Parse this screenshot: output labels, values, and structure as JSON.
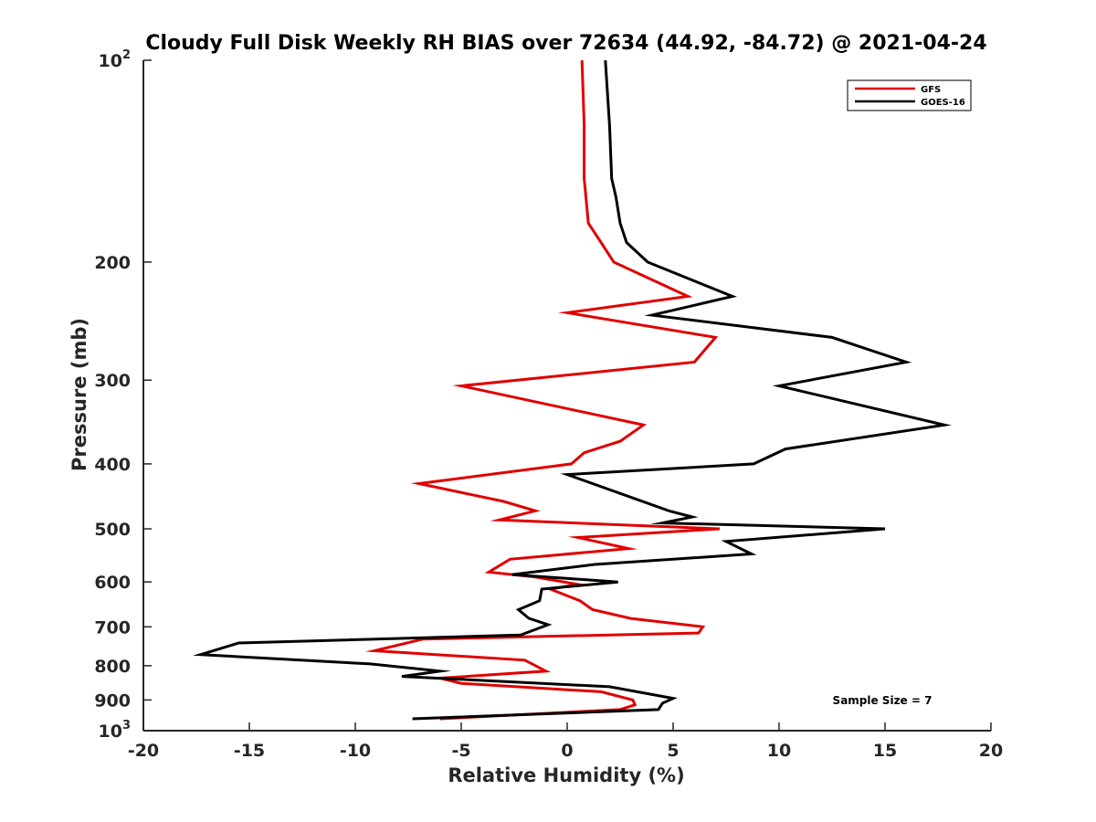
{
  "chart_data": {
    "type": "line",
    "title": "Cloudy Full Disk Weekly RH BIAS over 72634 (44.92, -84.72) @ 2021-04-24",
    "xlabel": "Relative Humidity (%)",
    "ylabel": "Pressure (mb)",
    "xlim": [
      -20,
      20
    ],
    "ylim": [
      100,
      1000
    ],
    "y_scale": "log",
    "y_reversed": true,
    "x_ticks": [
      -20,
      -15,
      -10,
      -5,
      0,
      5,
      10,
      15,
      20
    ],
    "y_ticks": [
      {
        "value": 100,
        "label": "10",
        "sup": "2"
      },
      {
        "value": 200,
        "label": "200",
        "sup": ""
      },
      {
        "value": 300,
        "label": "300",
        "sup": ""
      },
      {
        "value": 400,
        "label": "400",
        "sup": ""
      },
      {
        "value": 500,
        "label": "500",
        "sup": ""
      },
      {
        "value": 600,
        "label": "600",
        "sup": ""
      },
      {
        "value": 700,
        "label": "700",
        "sup": ""
      },
      {
        "value": 800,
        "label": "800",
        "sup": ""
      },
      {
        "value": 900,
        "label": "900",
        "sup": ""
      },
      {
        "value": 1000,
        "label": "10",
        "sup": "3"
      }
    ],
    "grid": false,
    "legend_position": "top-right",
    "annotation": "Sample Size = 7",
    "series": [
      {
        "name": "GFS",
        "color": "#e00000",
        "points": [
          [
            0.7,
            100
          ],
          [
            0.8,
            125
          ],
          [
            0.8,
            150
          ],
          [
            1.0,
            175
          ],
          [
            1.6,
            187
          ],
          [
            2.2,
            200
          ],
          [
            5.7,
            225
          ],
          [
            0.0,
            238
          ],
          [
            7.0,
            259
          ],
          [
            6.0,
            282
          ],
          [
            -5.0,
            306
          ],
          [
            3.6,
            350
          ],
          [
            2.5,
            370
          ],
          [
            0.8,
            385
          ],
          [
            0.2,
            400
          ],
          [
            -7.0,
            428
          ],
          [
            -3.0,
            455
          ],
          [
            -1.5,
            470
          ],
          [
            -3.2,
            485
          ],
          [
            7.2,
            500
          ],
          [
            0.5,
            515
          ],
          [
            2.9,
            535
          ],
          [
            -2.7,
            555
          ],
          [
            -3.7,
            580
          ],
          [
            -1.5,
            590
          ],
          [
            0.5,
            605
          ],
          [
            -0.8,
            615
          ],
          [
            0.6,
            640
          ],
          [
            1.2,
            660
          ],
          [
            3.0,
            680
          ],
          [
            6.4,
            700
          ],
          [
            6.2,
            715
          ],
          [
            -6.8,
            730
          ],
          [
            -9.1,
            760
          ],
          [
            -2.0,
            785
          ],
          [
            -1.0,
            815
          ],
          [
            -6.0,
            835
          ],
          [
            -5.0,
            850
          ],
          [
            1.6,
            875
          ],
          [
            3.1,
            900
          ],
          [
            3.2,
            915
          ],
          [
            2.5,
            930
          ],
          [
            -6.0,
            960
          ]
        ]
      },
      {
        "name": "GOES-16",
        "color": "#000000",
        "points": [
          [
            1.8,
            100
          ],
          [
            2.0,
            125
          ],
          [
            2.1,
            150
          ],
          [
            2.3,
            160
          ],
          [
            2.5,
            175
          ],
          [
            2.8,
            187
          ],
          [
            3.8,
            200
          ],
          [
            7.8,
            225
          ],
          [
            4.0,
            240
          ],
          [
            12.5,
            259
          ],
          [
            16.0,
            282
          ],
          [
            10.0,
            306
          ],
          [
            17.8,
            350
          ],
          [
            10.3,
            380
          ],
          [
            8.8,
            400
          ],
          [
            0.0,
            415
          ],
          [
            4.8,
            470
          ],
          [
            5.9,
            480
          ],
          [
            4.5,
            490
          ],
          [
            15.0,
            500
          ],
          [
            7.5,
            522
          ],
          [
            8.7,
            545
          ],
          [
            1.3,
            565
          ],
          [
            -2.6,
            585
          ],
          [
            2.4,
            600
          ],
          [
            -1.2,
            615
          ],
          [
            -1.3,
            640
          ],
          [
            -2.3,
            660
          ],
          [
            -1.8,
            680
          ],
          [
            -0.9,
            695
          ],
          [
            -2.2,
            720
          ],
          [
            -15.5,
            740
          ],
          [
            -17.3,
            770
          ],
          [
            -9.3,
            795
          ],
          [
            -6.0,
            815
          ],
          [
            -7.8,
            830
          ],
          [
            2.0,
            860
          ],
          [
            5.0,
            895
          ],
          [
            4.5,
            910
          ],
          [
            4.3,
            930
          ],
          [
            -7.3,
            960
          ]
        ]
      }
    ]
  }
}
